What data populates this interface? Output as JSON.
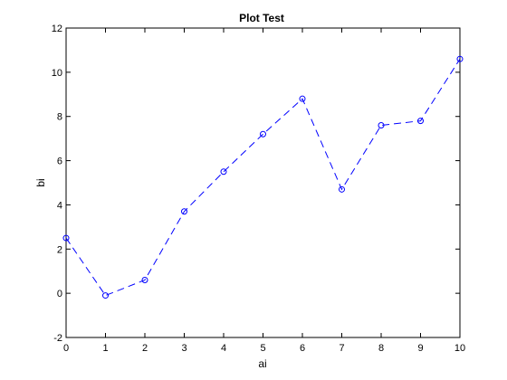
{
  "chart_data": {
    "type": "line",
    "title": "Plot Test",
    "xlabel": "ai",
    "ylabel": "bi",
    "xlim": [
      0,
      10
    ],
    "ylim": [
      -2,
      12
    ],
    "xticks": [
      0,
      1,
      2,
      3,
      4,
      5,
      6,
      7,
      8,
      9,
      10
    ],
    "yticks": [
      -2,
      0,
      2,
      4,
      6,
      8,
      10,
      12
    ],
    "grid": false,
    "series": [
      {
        "color": "#0000ff",
        "line_style": "dashed",
        "marker": "circle",
        "x": [
          0,
          1,
          2,
          3,
          4,
          5,
          6,
          7,
          8,
          9,
          10
        ],
        "y": [
          2.5,
          -0.1,
          0.6,
          3.7,
          5.5,
          7.2,
          8.8,
          4.7,
          7.6,
          7.8,
          10.6
        ]
      }
    ]
  }
}
